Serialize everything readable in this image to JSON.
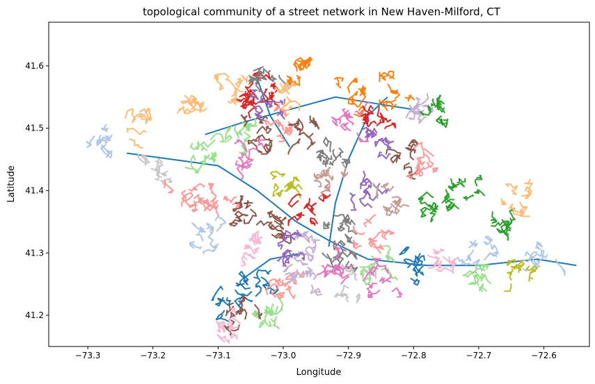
{
  "title": "topological community of a street network in New Haven-Milford, CT",
  "xlabel": "Longitude",
  "ylabel": "Latitude",
  "x_ticks": [
    "−73.3",
    "−73.2",
    "−73.1",
    "−73.0",
    "−72.9",
    "−72.8",
    "−72.7",
    "−72.6"
  ],
  "y_ticks": [
    "41.2",
    "41.3",
    "41.4",
    "41.5",
    "41.6"
  ],
  "chart_data": {
    "type": "map",
    "xlim": [
      -73.36,
      -72.53
    ],
    "ylim": [
      41.15,
      41.67
    ],
    "x_tick_values": [
      -73.3,
      -73.2,
      -73.1,
      -73.0,
      -72.9,
      -72.8,
      -72.7,
      -72.6
    ],
    "y_tick_values": [
      41.2,
      41.3,
      41.4,
      41.5,
      41.6
    ],
    "grid": false,
    "legend": "none",
    "palette": [
      "#1f77b4",
      "#aec7e8",
      "#ff7f0e",
      "#ffbb78",
      "#2ca02c",
      "#98df8a",
      "#d62728",
      "#ff9896",
      "#9467bd",
      "#c5b0d5",
      "#8c564b",
      "#c49c94",
      "#e377c2",
      "#f7b6d2",
      "#7f7f7f",
      "#c7c7c7",
      "#bcbd22",
      "#dbdb8d",
      "#17becf"
    ],
    "communities": [
      {
        "lon": -73.27,
        "lat": 41.48,
        "color": "#aec7e8"
      },
      {
        "lon": -73.22,
        "lat": 41.5,
        "color": "#ffbb78"
      },
      {
        "lon": -73.19,
        "lat": 41.44,
        "color": "#c7c7c7"
      },
      {
        "lon": -73.13,
        "lat": 41.54,
        "color": "#ffbb78"
      },
      {
        "lon": -73.08,
        "lat": 41.56,
        "color": "#ffbb78"
      },
      {
        "lon": -73.06,
        "lat": 41.49,
        "color": "#98df8a"
      },
      {
        "lon": -73.12,
        "lat": 41.46,
        "color": "#98df8a"
      },
      {
        "lon": -73.15,
        "lat": 41.39,
        "color": "#ff9896"
      },
      {
        "lon": -73.09,
        "lat": 41.38,
        "color": "#ff9896"
      },
      {
        "lon": -73.12,
        "lat": 41.33,
        "color": "#aec7e8"
      },
      {
        "lon": -73.05,
        "lat": 41.53,
        "color": "#d62728"
      },
      {
        "lon": -73.03,
        "lat": 41.56,
        "color": "#d62728"
      },
      {
        "lon": -73.04,
        "lat": 41.49,
        "color": "#8c564b"
      },
      {
        "lon": -73.02,
        "lat": 41.58,
        "color": "#7f7f7f"
      },
      {
        "lon": -73.03,
        "lat": 41.53,
        "color": "#9467bd"
      },
      {
        "lon": -72.99,
        "lat": 41.55,
        "color": "#ffbb78"
      },
      {
        "lon": -72.97,
        "lat": 41.6,
        "color": "#ff7f0e"
      },
      {
        "lon": -73.01,
        "lat": 41.51,
        "color": "#ff9896"
      },
      {
        "lon": -72.96,
        "lat": 41.49,
        "color": "#8c564b"
      },
      {
        "lon": -73.05,
        "lat": 41.45,
        "color": "#e377c2"
      },
      {
        "lon": -73.0,
        "lat": 41.42,
        "color": "#bcbd22"
      },
      {
        "lon": -73.06,
        "lat": 41.36,
        "color": "#8c564b"
      },
      {
        "lon": -73.02,
        "lat": 41.34,
        "color": "#8c564b"
      },
      {
        "lon": -72.96,
        "lat": 41.37,
        "color": "#d62728"
      },
      {
        "lon": -72.92,
        "lat": 41.42,
        "color": "#c49c94"
      },
      {
        "lon": -72.93,
        "lat": 41.47,
        "color": "#7f7f7f"
      },
      {
        "lon": -72.9,
        "lat": 41.51,
        "color": "#e377c2"
      },
      {
        "lon": -72.9,
        "lat": 41.55,
        "color": "#ff7f0e"
      },
      {
        "lon": -72.86,
        "lat": 41.52,
        "color": "#d62728"
      },
      {
        "lon": -72.82,
        "lat": 41.56,
        "color": "#ff7f0e"
      },
      {
        "lon": -72.79,
        "lat": 41.53,
        "color": "#c5b0d5"
      },
      {
        "lon": -72.76,
        "lat": 41.53,
        "color": "#2ca02c"
      },
      {
        "lon": -72.85,
        "lat": 41.47,
        "color": "#9467bd"
      },
      {
        "lon": -72.81,
        "lat": 41.45,
        "color": "#8c564b"
      },
      {
        "lon": -72.78,
        "lat": 41.45,
        "color": "#ff9896"
      },
      {
        "lon": -72.87,
        "lat": 41.4,
        "color": "#9467bd"
      },
      {
        "lon": -72.84,
        "lat": 41.38,
        "color": "#c49c94"
      },
      {
        "lon": -72.91,
        "lat": 41.33,
        "color": "#7f7f7f"
      },
      {
        "lon": -72.86,
        "lat": 41.33,
        "color": "#ff9896"
      },
      {
        "lon": -72.76,
        "lat": 41.38,
        "color": "#2ca02c"
      },
      {
        "lon": -72.72,
        "lat": 41.4,
        "color": "#2ca02c"
      },
      {
        "lon": -72.66,
        "lat": 41.34,
        "color": "#2ca02c"
      },
      {
        "lon": -72.65,
        "lat": 41.39,
        "color": "#ffbb78"
      },
      {
        "lon": -72.7,
        "lat": 41.3,
        "color": "#aec7e8"
      },
      {
        "lon": -72.6,
        "lat": 41.29,
        "color": "#aec7e8"
      },
      {
        "lon": -72.76,
        "lat": 41.29,
        "color": "#f7b6d2"
      },
      {
        "lon": -72.7,
        "lat": 41.25,
        "color": "#98df8a"
      },
      {
        "lon": -72.8,
        "lat": 41.28,
        "color": "#1f77b4"
      },
      {
        "lon": -72.85,
        "lat": 41.28,
        "color": "#98df8a"
      },
      {
        "lon": -72.91,
        "lat": 41.29,
        "color": "#7f7f7f"
      },
      {
        "lon": -72.96,
        "lat": 41.31,
        "color": "#c5b0d5"
      },
      {
        "lon": -73.0,
        "lat": 41.31,
        "color": "#9467bd"
      },
      {
        "lon": -73.05,
        "lat": 41.31,
        "color": "#f7b6d2"
      },
      {
        "lon": -73.04,
        "lat": 41.26,
        "color": "#1f77b4"
      },
      {
        "lon": -73.08,
        "lat": 41.22,
        "color": "#1f77b4"
      },
      {
        "lon": -73.06,
        "lat": 41.2,
        "color": "#8c564b"
      },
      {
        "lon": -73.03,
        "lat": 41.21,
        "color": "#98df8a"
      },
      {
        "lon": -73.0,
        "lat": 41.24,
        "color": "#ff9896"
      },
      {
        "lon": -72.97,
        "lat": 41.26,
        "color": "#c5b0d5"
      },
      {
        "lon": -72.89,
        "lat": 41.25,
        "color": "#c7c7c7"
      },
      {
        "lon": -72.85,
        "lat": 41.26,
        "color": "#e377c2"
      },
      {
        "lon": -72.92,
        "lat": 41.28,
        "color": "#e377c2"
      },
      {
        "lon": -73.09,
        "lat": 41.18,
        "color": "#f7b6d2"
      },
      {
        "lon": -72.63,
        "lat": 41.27,
        "color": "#bcbd22"
      }
    ]
  }
}
